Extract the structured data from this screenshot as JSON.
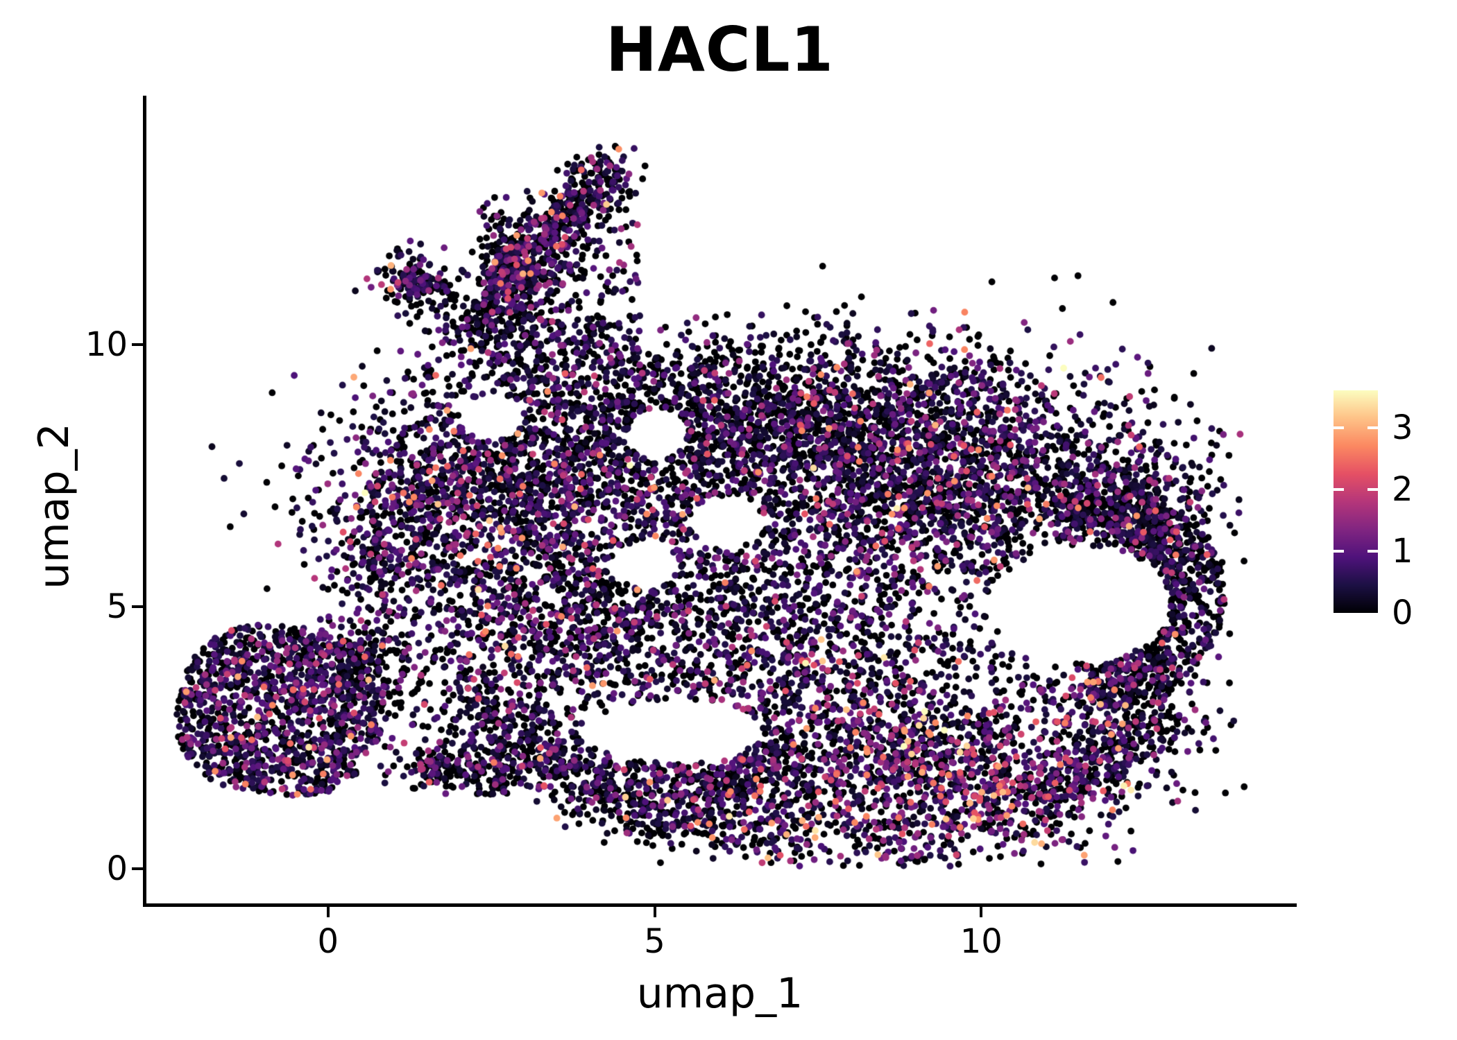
{
  "title": "HACL1",
  "axes": {
    "xlabel": "umap_1",
    "ylabel": "umap_2",
    "x_ticks": [
      0,
      5,
      10
    ],
    "y_ticks": [
      0,
      5,
      10
    ]
  },
  "colorbar": {
    "ticks": [
      0,
      1,
      2,
      3
    ],
    "vmin": 0,
    "vmax": 3.6,
    "colormap": "magma",
    "stops": [
      "#000004",
      "#1c1044",
      "#4f127b",
      "#812581",
      "#b5367a",
      "#e55064",
      "#fb8861",
      "#fec287",
      "#fcfdbf"
    ]
  },
  "chart_data": {
    "type": "scatter",
    "title": "HACL1",
    "xlabel": "umap_1",
    "ylabel": "umap_2",
    "x_ticks": [
      0,
      5,
      10
    ],
    "y_ticks": [
      0,
      5,
      10
    ],
    "xlim": [
      -2.8,
      14.8
    ],
    "ylim": [
      -0.7,
      15.2
    ],
    "legend_position": "right",
    "grid": false,
    "color_scale": {
      "name": "magma",
      "vmin": 0,
      "vmax": 3.55
    },
    "n_points_approx": 15000,
    "generation": {
      "seed": 42,
      "point_radius_px": 4.9,
      "value_model": {
        "zero_color_value": 0,
        "base": 0.15,
        "tail_knee": 2.6,
        "tail_compress": 0.45,
        "vmax": 3.55
      },
      "holes": [
        {
          "cx": 11.55,
          "cy": 5.05,
          "rx": 1.35,
          "ry": 1.12
        },
        {
          "cx": 6.1,
          "cy": 6.6,
          "rx": 0.55,
          "ry": 0.5
        },
        {
          "cx": 4.85,
          "cy": 5.8,
          "rx": 0.5,
          "ry": 0.45
        },
        {
          "cx": 2.5,
          "cy": 8.6,
          "rx": 0.5,
          "ry": 0.42
        },
        {
          "cx": 5.3,
          "cy": 2.62,
          "rx": 1.35,
          "ry": 0.6
        },
        {
          "cx": 5.05,
          "cy": 8.3,
          "rx": 0.45,
          "ry": 0.5
        }
      ],
      "clusters": [
        {
          "name": "upper-left-lobe",
          "kind": "gauss",
          "cx": 2.65,
          "cy": 7.35,
          "sx": 1.35,
          "sy": 1.15,
          "n": 1400,
          "p0": 0.4,
          "sc": 0.62
        },
        {
          "name": "top-band",
          "kind": "gauss",
          "cx": 6.2,
          "cy": 8.55,
          "sx": 1.8,
          "sy": 0.85,
          "n": 1450,
          "p0": 0.52,
          "sc": 0.5
        },
        {
          "name": "right-mass",
          "kind": "gauss",
          "cx": 9.4,
          "cy": 7.5,
          "sx": 1.6,
          "sy": 1.2,
          "n": 2000,
          "p0": 0.42,
          "sc": 0.6
        },
        {
          "name": "center-mass",
          "kind": "gauss",
          "cx": 5.9,
          "cy": 5.4,
          "sx": 1.8,
          "sy": 1.3,
          "n": 1050,
          "p0": 0.46,
          "sc": 0.6
        },
        {
          "name": "left-mid",
          "kind": "gauss",
          "cx": 3.3,
          "cy": 4.5,
          "sx": 1.0,
          "sy": 0.9,
          "n": 520,
          "p0": 0.46,
          "sc": 0.62
        },
        {
          "name": "right-ring",
          "kind": "arc",
          "cx": 11.3,
          "cy": 5.2,
          "r0": 1.5,
          "r1": 2.45,
          "a0": -78,
          "a1": 95,
          "ys": 0.92,
          "n": 760,
          "p0": 0.52,
          "sc": 0.5
        },
        {
          "name": "bottom-right-hot",
          "kind": "gauss",
          "cx": 9.25,
          "cy": 1.75,
          "sx": 1.55,
          "sy": 0.95,
          "n": 1350,
          "p0": 0.32,
          "sc": 0.95
        },
        {
          "name": "bottom-band",
          "kind": "band",
          "x0": 4.0,
          "y0": 1.5,
          "x1": 7.0,
          "y1": 1.7,
          "s": 0.45,
          "n": 520,
          "p0": 0.48,
          "sc": 0.62
        },
        {
          "name": "diag-chain",
          "kind": "band",
          "x0": 2.25,
          "y0": 3.25,
          "x1": 4.05,
          "y1": 1.55,
          "s": 0.28,
          "n": 300,
          "p0": 0.5,
          "sc": 0.6
        },
        {
          "name": "connector",
          "kind": "gauss",
          "cx": 7.35,
          "cy": 3.35,
          "sx": 1.45,
          "sy": 0.95,
          "n": 560,
          "p0": 0.46,
          "sc": 0.62
        },
        {
          "name": "sparse-fill",
          "kind": "disc",
          "cx": 7.0,
          "cy": 5.9,
          "rx": 6.1,
          "ry": 4.35,
          "n": 850,
          "p0": 0.52,
          "sc": 0.52
        },
        {
          "name": "right-upper-bulge",
          "kind": "gauss",
          "cx": 12.55,
          "cy": 6.9,
          "sx": 0.65,
          "sy": 0.85,
          "n": 330,
          "p0": 0.5,
          "sc": 0.52
        },
        {
          "name": "right-lower-edge",
          "kind": "gauss",
          "cx": 12.15,
          "cy": 3.15,
          "sx": 0.75,
          "sy": 0.75,
          "n": 260,
          "p0": 0.46,
          "sc": 0.6
        },
        {
          "name": "bottom-right-arc",
          "kind": "band",
          "x0": 10.5,
          "y0": 0.95,
          "x1": 12.9,
          "y1": 3.0,
          "s": 0.33,
          "n": 270,
          "p0": 0.48,
          "sc": 0.6
        },
        {
          "name": "left-bump",
          "kind": "gauss",
          "cx": 0.95,
          "cy": 6.3,
          "sx": 0.55,
          "sy": 0.8,
          "n": 280,
          "p0": 0.42,
          "sc": 0.62
        },
        {
          "name": "bottom-tail",
          "kind": "band",
          "x0": 4.6,
          "y0": 1.0,
          "x1": 7.2,
          "y1": 0.5,
          "s": 0.24,
          "n": 150,
          "p0": 0.5,
          "sc": 0.6
        },
        {
          "name": "arm-main",
          "kind": "band",
          "x0": 2.6,
          "y0": 11.15,
          "x1": 4.35,
          "y1": 13.4,
          "s": 0.27,
          "n": 430,
          "p0": 0.45,
          "sc": 0.6
        },
        {
          "name": "arm-lower",
          "kind": "band",
          "x0": 2.05,
          "y0": 10.35,
          "x1": 3.35,
          "y1": 11.7,
          "s": 0.32,
          "n": 300,
          "p0": 0.45,
          "sc": 0.6
        },
        {
          "name": "arm-scatter",
          "kind": "rect",
          "x0": 2.3,
          "y0": 9.7,
          "x1": 4.75,
          "y1": 13.0,
          "n": 250,
          "p0": 0.52,
          "sc": 0.55
        },
        {
          "name": "arm-block",
          "kind": "gauss",
          "cx": 1.32,
          "cy": 11.22,
          "sx": 0.3,
          "sy": 0.28,
          "n": 150,
          "p0": 0.44,
          "sc": 0.6
        },
        {
          "name": "arm-neck",
          "kind": "gauss",
          "cx": 3.3,
          "cy": 9.85,
          "sx": 0.65,
          "sy": 0.5,
          "n": 170,
          "p0": 0.48,
          "sc": 0.55
        },
        {
          "name": "bottom-left-cluster",
          "kind": "super",
          "cx": -0.72,
          "cy": 3.02,
          "rx": 1.58,
          "ry": 1.62,
          "rot": -10,
          "n": 1250,
          "p0": 0.4,
          "sc": 0.62
        },
        {
          "name": "bl-tail",
          "kind": "gauss",
          "cx": 0.55,
          "cy": 4.0,
          "sx": 0.45,
          "sy": 0.4,
          "n": 120,
          "p0": 0.42,
          "sc": 0.62
        },
        {
          "name": "bridge-a",
          "kind": "gauss",
          "cx": 1.7,
          "cy": 1.95,
          "sx": 0.27,
          "sy": 0.22,
          "n": 85,
          "p0": 0.45,
          "sc": 0.6
        },
        {
          "name": "bridge-b",
          "kind": "gauss",
          "cx": 2.45,
          "cy": 1.9,
          "sx": 0.3,
          "sy": 0.25,
          "n": 95,
          "p0": 0.45,
          "sc": 0.6
        },
        {
          "name": "bridge-sparse",
          "kind": "rect",
          "x0": 0.8,
          "y0": 1.4,
          "x1": 3.4,
          "y1": 2.6,
          "n": 70,
          "p0": 0.55,
          "sc": 0.5
        },
        {
          "name": "left-gap-sprinkle",
          "kind": "rect",
          "x0": 0.2,
          "y0": 2.6,
          "x1": 2.2,
          "y1": 4.2,
          "n": 60,
          "p0": 0.6,
          "sc": 0.45
        }
      ]
    }
  }
}
